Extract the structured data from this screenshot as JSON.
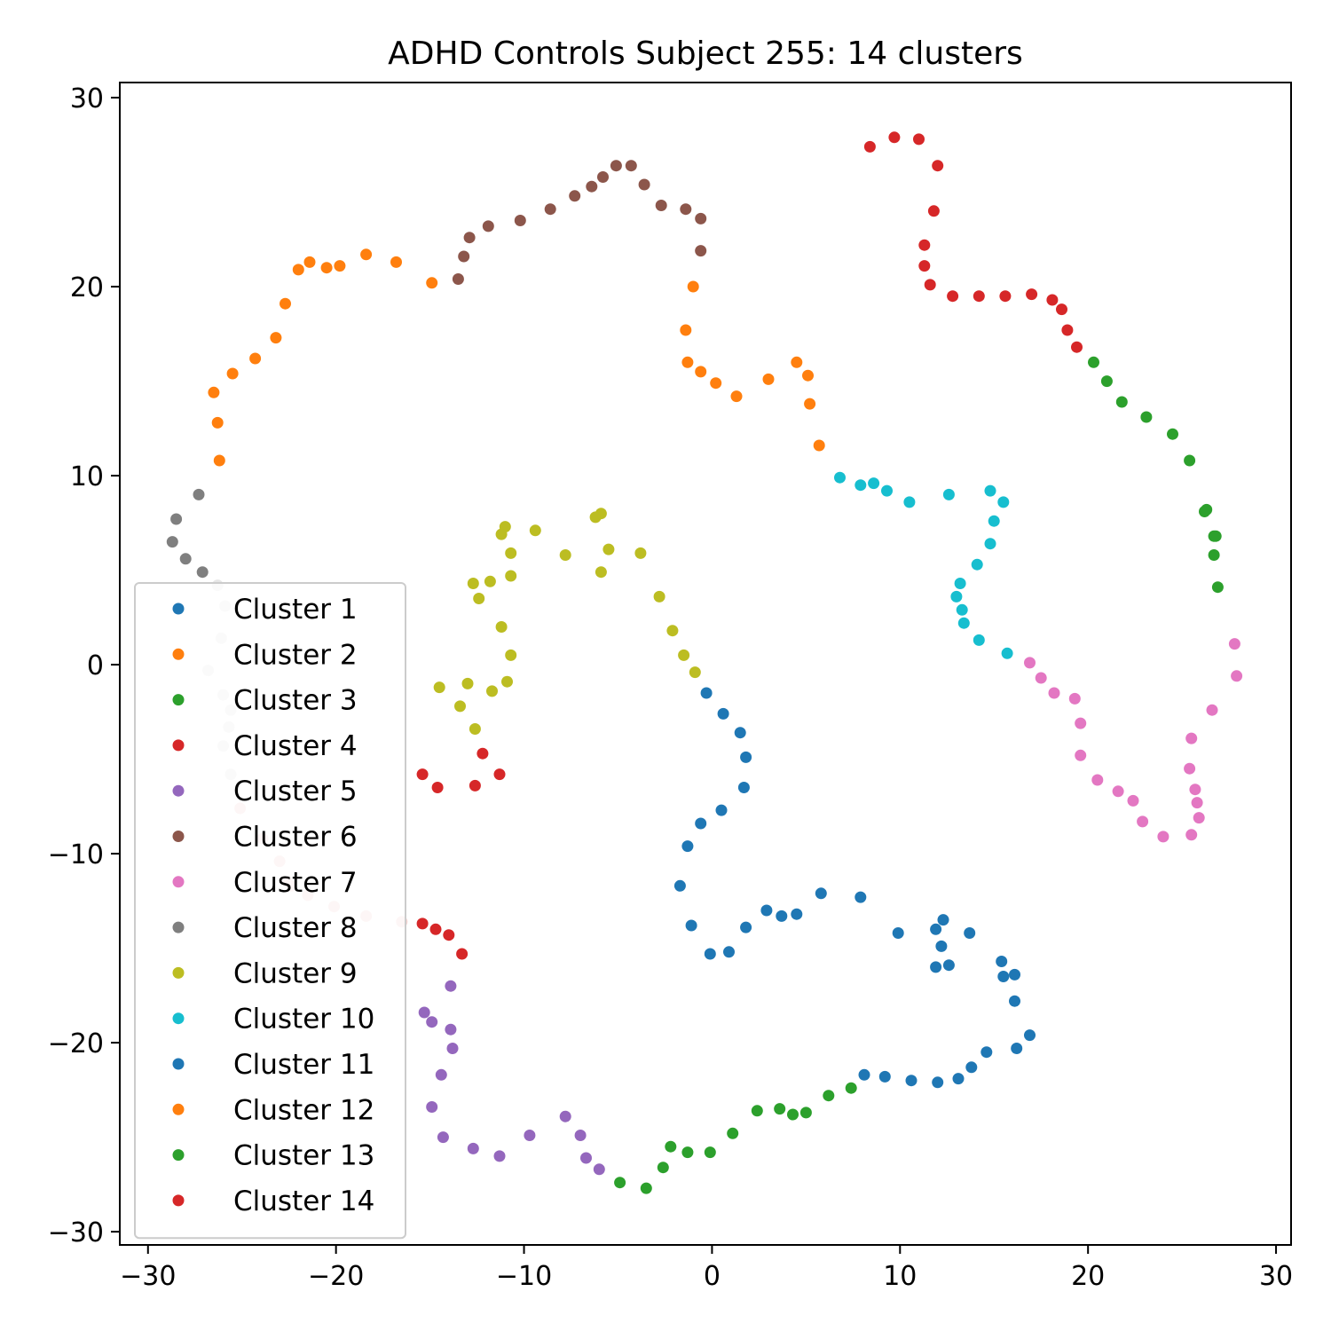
{
  "chart_data": {
    "type": "scatter",
    "title": "ADHD Controls Subject 255: 14 clusters",
    "xlabel": "",
    "ylabel": "",
    "xlim": [
      -31.5,
      30.8
    ],
    "ylim": [
      -30.7,
      30.8
    ],
    "x_ticks": [
      -30,
      -20,
      -10,
      0,
      10,
      20,
      30
    ],
    "x_tick_labels": [
      "−30",
      "−20",
      "−10",
      "0",
      "10",
      "20",
      "30"
    ],
    "y_ticks": [
      -30,
      -20,
      -10,
      0,
      10,
      20,
      30
    ],
    "y_tick_labels": [
      "−30",
      "−20",
      "−10",
      "0",
      "10",
      "20",
      "30"
    ],
    "grid": false,
    "legend_position": "lower-left",
    "series": [
      {
        "name": "Cluster 1",
        "color": "#1f77b4",
        "points": [
          [
            -0.3,
            -1.5
          ],
          [
            0.6,
            -2.6
          ],
          [
            1.5,
            -3.6
          ],
          [
            1.8,
            -4.9
          ],
          [
            1.7,
            -6.5
          ],
          [
            0.5,
            -7.7
          ],
          [
            -0.6,
            -8.4
          ],
          [
            -1.3,
            -9.6
          ],
          [
            -1.7,
            -11.7
          ],
          [
            -1.1,
            -13.8
          ],
          [
            -0.1,
            -15.3
          ],
          [
            0.9,
            -15.2
          ],
          [
            1.8,
            -13.9
          ],
          [
            2.9,
            -13
          ],
          [
            3.7,
            -13.3
          ],
          [
            4.5,
            -13.2
          ],
          [
            5.8,
            -12.1
          ],
          [
            7.9,
            -12.3
          ],
          [
            9.9,
            -14.2
          ],
          [
            11.9,
            -14
          ],
          [
            12.3,
            -13.5
          ],
          [
            12.2,
            -14.9
          ],
          [
            12.6,
            -15.9
          ],
          [
            11.9,
            -16
          ],
          [
            13.7,
            -14.2
          ],
          [
            15.4,
            -15.7
          ],
          [
            15.5,
            -16.5
          ],
          [
            16.1,
            -16.4
          ],
          [
            16.1,
            -17.8
          ]
        ]
      },
      {
        "name": "Cluster 2",
        "color": "#ff7f0e",
        "points": [
          [
            -1,
            20
          ],
          [
            -1.4,
            17.7
          ],
          [
            -1.3,
            16
          ],
          [
            -0.6,
            15.5
          ],
          [
            0.2,
            14.9
          ],
          [
            1.3,
            14.2
          ],
          [
            3,
            15.1
          ],
          [
            4.5,
            16
          ],
          [
            5.1,
            15.3
          ],
          [
            5.2,
            13.8
          ],
          [
            5.7,
            11.6
          ]
        ]
      },
      {
        "name": "Cluster 3",
        "color": "#2ca02c",
        "points": [
          [
            20.3,
            16
          ],
          [
            21,
            15
          ],
          [
            21.8,
            13.9
          ],
          [
            23.1,
            13.1
          ],
          [
            24.5,
            12.2
          ],
          [
            25.4,
            10.8
          ],
          [
            26.2,
            8.1
          ],
          [
            26.3,
            8.2
          ],
          [
            26.7,
            6.8
          ],
          [
            26.8,
            6.8
          ],
          [
            26.7,
            5.8
          ],
          [
            26.9,
            4.1
          ]
        ]
      },
      {
        "name": "Cluster 4",
        "color": "#d62728",
        "points": [
          [
            8.4,
            27.4
          ],
          [
            9.7,
            27.9
          ],
          [
            11,
            27.8
          ],
          [
            12,
            26.4
          ],
          [
            11.8,
            24
          ],
          [
            11.3,
            22.2
          ],
          [
            11.3,
            21.1
          ],
          [
            11.6,
            20.1
          ],
          [
            12.8,
            19.5
          ],
          [
            14.2,
            19.5
          ],
          [
            15.6,
            19.5
          ],
          [
            17,
            19.6
          ],
          [
            18.1,
            19.3
          ],
          [
            18.6,
            18.8
          ],
          [
            18.9,
            17.7
          ],
          [
            19.4,
            16.8
          ]
        ]
      },
      {
        "name": "Cluster 5",
        "color": "#9467bd",
        "points": [
          [
            -13.9,
            -17
          ],
          [
            -15.3,
            -18.4
          ],
          [
            -14.9,
            -18.9
          ],
          [
            -13.9,
            -19.3
          ],
          [
            -13.8,
            -20.3
          ],
          [
            -14.4,
            -21.7
          ],
          [
            -14.9,
            -23.4
          ],
          [
            -14.3,
            -25
          ],
          [
            -12.7,
            -25.6
          ],
          [
            -11.3,
            -26
          ],
          [
            -9.7,
            -24.9
          ],
          [
            -7.8,
            -23.9
          ],
          [
            -7,
            -24.9
          ],
          [
            -6.7,
            -26.1
          ],
          [
            -6,
            -26.7
          ]
        ]
      },
      {
        "name": "Cluster 6",
        "color": "#8c564b",
        "points": [
          [
            -13.5,
            20.4
          ],
          [
            -13.2,
            21.6
          ],
          [
            -12.9,
            22.6
          ],
          [
            -11.9,
            23.2
          ],
          [
            -10.2,
            23.5
          ],
          [
            -8.6,
            24.1
          ],
          [
            -7.3,
            24.8
          ],
          [
            -6.4,
            25.3
          ],
          [
            -5.8,
            25.8
          ],
          [
            -5.1,
            26.4
          ],
          [
            -4.3,
            26.4
          ],
          [
            -3.6,
            25.4
          ],
          [
            -2.7,
            24.3
          ],
          [
            -1.4,
            24.1
          ],
          [
            -0.6,
            23.6
          ],
          [
            -0.6,
            21.9
          ]
        ]
      },
      {
        "name": "Cluster 7",
        "color": "#e377c2",
        "points": [
          [
            16.9,
            0.1
          ],
          [
            17.5,
            -0.7
          ],
          [
            18.2,
            -1.5
          ],
          [
            19.3,
            -1.8
          ],
          [
            19.6,
            -3.1
          ],
          [
            19.6,
            -4.8
          ],
          [
            20.5,
            -6.1
          ],
          [
            21.6,
            -6.7
          ],
          [
            22.4,
            -7.2
          ],
          [
            22.9,
            -8.3
          ],
          [
            24,
            -9.1
          ],
          [
            25.5,
            -9
          ],
          [
            25.9,
            -8.1
          ],
          [
            25.8,
            -7.3
          ],
          [
            25.7,
            -6.6
          ],
          [
            25.4,
            -5.5
          ],
          [
            25.5,
            -3.9
          ],
          [
            26.6,
            -2.4
          ],
          [
            27.9,
            -0.6
          ],
          [
            27.8,
            1.1
          ]
        ]
      },
      {
        "name": "Cluster 8",
        "color": "#7f7f7f",
        "points": [
          [
            -27.3,
            9
          ],
          [
            -28.5,
            7.7
          ],
          [
            -28.7,
            6.5
          ],
          [
            -28,
            5.6
          ],
          [
            -27.1,
            4.9
          ]
        ]
      },
      {
        "name": "Cluster 9",
        "color": "#bcbd22",
        "points": [
          [
            -11.0,
            7.3
          ],
          [
            -11.2,
            6.9
          ],
          [
            -10.7,
            5.9
          ],
          [
            -10.7,
            4.7
          ],
          [
            -9.4,
            7.1
          ],
          [
            -7.8,
            5.8
          ],
          [
            -6.2,
            7.8
          ],
          [
            -5.9,
            8
          ],
          [
            -5.5,
            6.1
          ],
          [
            -5.9,
            4.9
          ],
          [
            -3.8,
            5.9
          ],
          [
            -2.8,
            3.6
          ],
          [
            -2.1,
            1.8
          ],
          [
            -1.5,
            0.5
          ],
          [
            -0.9,
            -0.4
          ],
          [
            -12.7,
            4.3
          ],
          [
            -12.4,
            3.5
          ],
          [
            -11.8,
            4.4
          ],
          [
            -11.2,
            2
          ],
          [
            -10.7,
            0.5
          ],
          [
            -10.9,
            -0.9
          ],
          [
            -11.7,
            -1.4
          ],
          [
            -13,
            -1
          ],
          [
            -14.5,
            -1.2
          ],
          [
            -13.4,
            -2.2
          ],
          [
            -12.6,
            -3.4
          ]
        ]
      },
      {
        "name": "Cluster 10",
        "color": "#17becf",
        "points": [
          [
            6.8,
            9.9
          ],
          [
            7.9,
            9.5
          ],
          [
            8.6,
            9.6
          ],
          [
            9.3,
            9.2
          ],
          [
            10.5,
            8.6
          ],
          [
            12.6,
            9
          ],
          [
            14.8,
            9.2
          ],
          [
            15.5,
            8.6
          ],
          [
            15,
            7.6
          ],
          [
            14.8,
            6.4
          ],
          [
            14.1,
            5.3
          ],
          [
            13.2,
            4.3
          ],
          [
            13,
            3.6
          ],
          [
            13.3,
            2.9
          ],
          [
            13.4,
            2.2
          ],
          [
            14.2,
            1.3
          ],
          [
            15.7,
            0.6
          ]
        ]
      },
      {
        "name": "Cluster 11",
        "color": "#1f77b4",
        "points": [
          [
            16.9,
            -19.6
          ],
          [
            16.2,
            -20.3
          ],
          [
            14.6,
            -20.5
          ],
          [
            13.8,
            -21.3
          ],
          [
            13.1,
            -21.9
          ],
          [
            12,
            -22.1
          ],
          [
            10.6,
            -22
          ],
          [
            9.2,
            -21.8
          ],
          [
            8.1,
            -21.7
          ]
        ]
      },
      {
        "name": "Cluster 12",
        "color": "#ff7f0e",
        "points": [
          [
            -26.2,
            10.8
          ],
          [
            -26.3,
            12.8
          ],
          [
            -26.5,
            14.4
          ],
          [
            -25.5,
            15.4
          ],
          [
            -24.3,
            16.2
          ],
          [
            -23.2,
            17.3
          ],
          [
            -22.7,
            19.1
          ],
          [
            -22,
            20.9
          ],
          [
            -21.4,
            21.3
          ],
          [
            -20.5,
            21
          ],
          [
            -19.8,
            21.1
          ],
          [
            -18.4,
            21.7
          ],
          [
            -16.8,
            21.3
          ],
          [
            -14.9,
            20.2
          ]
        ]
      },
      {
        "name": "Cluster 13",
        "color": "#2ca02c",
        "points": [
          [
            7.4,
            -22.4
          ],
          [
            6.2,
            -22.8
          ],
          [
            5,
            -23.7
          ],
          [
            4.3,
            -23.8
          ],
          [
            3.6,
            -23.5
          ],
          [
            2.4,
            -23.6
          ],
          [
            1.1,
            -24.8
          ],
          [
            -0.1,
            -25.8
          ],
          [
            -1.3,
            -25.8
          ],
          [
            -2.2,
            -25.5
          ],
          [
            -2.6,
            -26.6
          ],
          [
            -3.5,
            -27.7
          ],
          [
            -4.9,
            -27.4
          ]
        ]
      },
      {
        "name": "Cluster 14",
        "color": "#d62728",
        "points": [
          [
            -12.2,
            -4.7
          ],
          [
            -11.3,
            -5.8
          ],
          [
            -12.6,
            -6.4
          ],
          [
            -14.6,
            -6.5
          ],
          [
            -15.4,
            -5.8
          ],
          [
            -15.4,
            -13.7
          ],
          [
            -14.7,
            -14
          ],
          [
            -14,
            -14.3
          ],
          [
            -13.3,
            -15.3
          ]
        ]
      },
      {
        "name": "",
        "color": "#e6e6e6",
        "points": [
          [
            -26.3,
            4.2
          ],
          [
            -25.9,
            3.1
          ],
          [
            -26.1,
            1.4
          ],
          [
            -26.8,
            -0.3
          ],
          [
            -26,
            -1.6
          ],
          [
            -25.6,
            -2.4
          ],
          [
            -25.7,
            -3.3
          ],
          [
            -26,
            -4.3
          ],
          [
            -25.6,
            -5.8
          ]
        ]
      },
      {
        "name": "",
        "color": "#f5d2d0",
        "points": [
          [
            -25.1,
            -7.6
          ],
          [
            -23.9,
            -9.2
          ],
          [
            -23,
            -10.4
          ],
          [
            -22.6,
            -11.5
          ],
          [
            -22.4,
            -11.7
          ],
          [
            -21.5,
            -12.2
          ],
          [
            -20.1,
            -12.8
          ],
          [
            -18.4,
            -13.3
          ],
          [
            -16.5,
            -13.6
          ]
        ]
      }
    ]
  }
}
